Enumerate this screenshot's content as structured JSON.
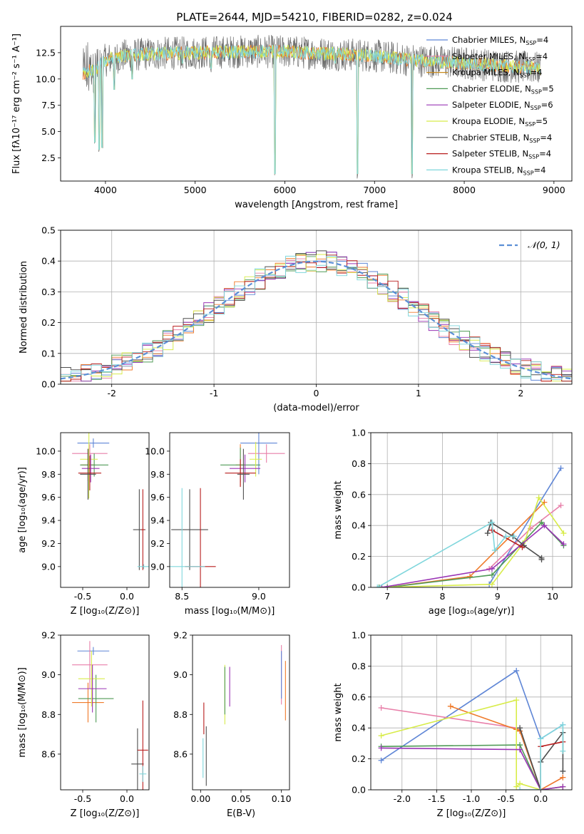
{
  "figure": {
    "title": "PLATE=2644, MJD=54210, FIBERID=0282, z=0.024"
  },
  "series_colors": {
    "Chabrier MILES": "#5f86d6",
    "Salpeter MILES": "#e87fa9",
    "Kroupa MILES": "#c98b1f",
    "Chabrier ELODIE": "#4f9a56",
    "Salpeter ELODIE": "#9a35b5",
    "Kroupa ELODIE": "#d8ec4a",
    "Chabrier STELIB": "#4f4f4f",
    "Salpeter STELIB": "#b81d1d",
    "Kroupa STELIB": "#7fd6dc",
    "Orange": "#ef7a2a"
  },
  "chart_data": [
    {
      "id": "spectrum",
      "type": "line",
      "title": "PLATE=2644, MJD=54210, FIBERID=0282, z=0.024",
      "xlabel": "wavelength [Angstrom, rest frame]",
      "ylabel": "Flux [fλ10⁻¹⁷ erg cm⁻² s⁻¹ A⁻¹]",
      "xlim": [
        3500,
        9200
      ],
      "ylim": [
        0.3,
        15.0
      ],
      "xticks": [
        4000,
        5000,
        6000,
        7000,
        8000,
        9000
      ],
      "yticks": [
        2.5,
        5.0,
        7.5,
        10.0,
        12.5
      ],
      "legend_loc": "upper-right",
      "legend": [
        "Chabrier MILES, N_SSP=4",
        "Salpeter MILES, N_SSP=4",
        "Kroupa MILES, N_SSP=4",
        "Chabrier ELODIE, N_SSP=5",
        "Salpeter ELODIE, N_SSP=6",
        "Kroupa ELODIE, N_SSP=5",
        "Chabrier STELIB, N_SSP=4",
        "Salpeter STELIB, N_SSP=4",
        "Kroupa STELIB, N_SSP=4"
      ],
      "data_range": [
        3750,
        8850
      ],
      "continuum_points": [
        [
          3750,
          10.5
        ],
        [
          3900,
          11.0
        ],
        [
          4000,
          11.8
        ],
        [
          4200,
          12.2
        ],
        [
          4500,
          12.4
        ],
        [
          5000,
          12.5
        ],
        [
          5500,
          12.6
        ],
        [
          6000,
          12.6
        ],
        [
          6500,
          12.4
        ],
        [
          7000,
          12.2
        ],
        [
          7400,
          11.8
        ],
        [
          8000,
          11.5
        ],
        [
          8500,
          11.2
        ],
        [
          8850,
          11.0
        ]
      ],
      "absorption_features": [
        [
          3880,
          3.5
        ],
        [
          3930,
          2.8
        ],
        [
          3965,
          3.0
        ],
        [
          4100,
          8.5
        ],
        [
          4300,
          9.5
        ],
        [
          4860,
          11.0
        ],
        [
          5175,
          10.5
        ],
        [
          5890,
          0.5
        ],
        [
          6560,
          11.0
        ],
        [
          6810,
          0.5
        ],
        [
          7420,
          0.5
        ]
      ]
    },
    {
      "id": "residuals",
      "type": "line",
      "xlabel": "(data-model)/error",
      "ylabel": "Normed distribution",
      "xlim": [
        -2.5,
        2.5
      ],
      "ylim": [
        0.0,
        0.5
      ],
      "xticks": [
        -2,
        -1,
        0,
        1,
        2
      ],
      "yticks": [
        0.0,
        0.1,
        0.2,
        0.3,
        0.4,
        0.5
      ],
      "grid": true,
      "legend_loc": "upper-right",
      "legend": [
        "𝒩(0, 1)"
      ],
      "histogram_bin_width": 0.1,
      "gaussian": {
        "mean": 0,
        "sigma": 1
      }
    },
    {
      "id": "age_vs_Z",
      "type": "scatter",
      "xlabel": "Z [log₁₀(Z/Z⊙)]",
      "ylabel": "age  [log₁₀(age/yr)]",
      "xlim": [
        -0.75,
        0.25
      ],
      "ylim": [
        8.82,
        10.16
      ],
      "xticks": [
        -0.5,
        0.0
      ],
      "yticks": [
        9.0,
        9.2,
        9.4,
        9.6,
        9.8,
        10.0
      ],
      "points": [
        {
          "series": "Chabrier MILES",
          "x": -0.38,
          "y": 10.07,
          "xerr": 0.18,
          "yerr": 0.04
        },
        {
          "series": "Salpeter MILES",
          "x": -0.42,
          "y": 9.98,
          "xerr": 0.2,
          "yerr": 0.08
        },
        {
          "series": "Orange",
          "x": -0.44,
          "y": 9.88,
          "xerr": 0.08,
          "yerr": 0.14
        },
        {
          "series": "Chabrier ELODIE",
          "x": -0.37,
          "y": 9.88,
          "xerr": 0.16,
          "yerr": 0.1
        },
        {
          "series": "Kroupa ELODIE",
          "x": -0.43,
          "y": 9.93,
          "xerr": 0.1,
          "yerr": 0.34
        },
        {
          "series": "Salpeter ELODIE",
          "x": -0.41,
          "y": 9.85,
          "xerr": 0.1,
          "yerr": 0.12
        },
        {
          "series": "Salpeter STELIB",
          "x": -0.42,
          "y": 9.81,
          "xerr": 0.13,
          "yerr": 0.15
        },
        {
          "series": "Chabrier STELIB",
          "x": -0.44,
          "y": 9.8,
          "xerr": 0.09,
          "yerr": 0.22
        },
        {
          "series": "Chabrier STELIB",
          "x": 0.14,
          "y": 9.32,
          "xerr": 0.07,
          "yerr": 0.35
        },
        {
          "series": "Salpeter STELIB",
          "x": 0.18,
          "y": 9.32,
          "xerr": 0.02,
          "yerr": 0.35
        },
        {
          "series": "Kroupa STELIB",
          "x": 0.19,
          "y": 9.0,
          "xerr": 0.07,
          "yerr": 0.02
        }
      ]
    },
    {
      "id": "age_vs_mass",
      "type": "scatter",
      "xlabel": "mass [log₁₀(M/M⊙)]",
      "ylabel": "",
      "xlim": [
        8.42,
        9.2
      ],
      "ylim": [
        8.82,
        10.16
      ],
      "xticks": [
        8.5,
        9.0
      ],
      "yticks": [
        9.0,
        9.2,
        9.4,
        9.6,
        9.8,
        10.0
      ],
      "points": [
        {
          "series": "Chabrier MILES",
          "x": 9.0,
          "y": 10.07,
          "xerr": 0.12,
          "yerr": 0.27
        },
        {
          "series": "Salpeter MILES",
          "x": 9.05,
          "y": 9.98,
          "xerr": 0.12,
          "yerr": 0.08
        },
        {
          "series": "Orange",
          "x": 8.88,
          "y": 9.88,
          "xerr": 0.03,
          "yerr": 0.18
        },
        {
          "series": "Chabrier ELODIE",
          "x": 8.88,
          "y": 9.88,
          "xerr": 0.13,
          "yerr": 0.15
        },
        {
          "series": "Kroupa ELODIE",
          "x": 8.98,
          "y": 9.93,
          "xerr": 0.04,
          "yerr": 0.15
        },
        {
          "series": "Salpeter ELODIE",
          "x": 8.91,
          "y": 9.85,
          "xerr": 0.1,
          "yerr": 0.12
        },
        {
          "series": "Salpeter STELIB",
          "x": 8.88,
          "y": 9.81,
          "xerr": 0.1,
          "yerr": 0.12
        },
        {
          "series": "Chabrier STELIB",
          "x": 8.9,
          "y": 9.8,
          "xerr": 0.04,
          "yerr": 0.22
        },
        {
          "series": "Chabrier STELIB",
          "x": 8.55,
          "y": 9.32,
          "xerr": 0.12,
          "yerr": 0.35
        },
        {
          "series": "Salpeter STELIB",
          "x": 8.62,
          "y": 9.0,
          "xerr": 0.1,
          "yerr": 0.68
        },
        {
          "series": "Kroupa STELIB",
          "x": 8.5,
          "y": 9.0,
          "xerr": 0.15,
          "yerr": 0.68
        }
      ]
    },
    {
      "id": "weight_vs_age",
      "type": "line",
      "xlabel": "age  [log₁₀(age/yr)]",
      "ylabel": "mass weight",
      "xlim": [
        6.7,
        10.35
      ],
      "ylim": [
        0.0,
        1.0
      ],
      "xticks": [
        7,
        8,
        9,
        10
      ],
      "yticks": [
        0.0,
        0.2,
        0.4,
        0.6,
        0.8,
        1.0
      ],
      "grid": true,
      "series": [
        {
          "series": "Chabrier MILES",
          "x": [
            8.85,
            10.15
          ],
          "y": [
            0.02,
            0.77
          ]
        },
        {
          "series": "Salpeter MILES",
          "x": [
            8.85,
            9.6,
            10.15
          ],
          "y": [
            0.12,
            0.38,
            0.53
          ]
        },
        {
          "series": "Orange",
          "x": [
            7.0,
            8.5,
            9.85
          ],
          "y": [
            0.0,
            0.07,
            0.55
          ]
        },
        {
          "series": "Chabrier ELODIE",
          "x": [
            6.85,
            7.0,
            8.9,
            9.8,
            10.2
          ],
          "y": [
            0.0,
            0.0,
            0.08,
            0.42,
            0.27
          ]
        },
        {
          "series": "Kroupa ELODIE",
          "x": [
            6.9,
            8.9,
            9.5,
            9.75,
            10.2
          ],
          "y": [
            0.0,
            0.02,
            0.3,
            0.58,
            0.35
          ]
        },
        {
          "series": "Salpeter ELODIE",
          "x": [
            6.9,
            8.9,
            9.85,
            10.2
          ],
          "y": [
            0.0,
            0.12,
            0.4,
            0.28
          ]
        },
        {
          "series": "Chabrier STELIB",
          "x": [
            8.82,
            8.88,
            9.28,
            9.48,
            9.8,
            9.8
          ],
          "y": [
            0.35,
            0.42,
            0.33,
            0.27,
            0.19,
            0.18
          ]
        },
        {
          "series": "Salpeter STELIB",
          "x": [
            8.9,
            9.45
          ],
          "y": [
            0.37,
            0.26
          ]
        },
        {
          "series": "Kroupa STELIB",
          "x": [
            6.82,
            8.9,
            8.95,
            9.15,
            9.3
          ],
          "y": [
            0.0,
            0.42,
            0.24,
            0.33,
            0.33
          ]
        }
      ]
    },
    {
      "id": "mass_vs_Z",
      "type": "scatter",
      "xlabel": "Z [log₁₀(Z/Z⊙)]",
      "ylabel": "mass [log₁₀(M/M⊙)]",
      "xlim": [
        -0.75,
        0.25
      ],
      "ylim": [
        8.42,
        9.2
      ],
      "xticks": [
        -0.5,
        0.0
      ],
      "yticks": [
        8.6,
        8.8,
        9.0,
        9.2
      ],
      "points": [
        {
          "series": "Chabrier MILES",
          "x": -0.38,
          "y": 9.12,
          "xerr": 0.18,
          "yerr": 0.02
        },
        {
          "series": "Salpeter MILES",
          "x": -0.42,
          "y": 9.05,
          "xerr": 0.2,
          "yerr": 0.12
        },
        {
          "series": "Orange",
          "x": -0.44,
          "y": 8.86,
          "xerr": 0.18,
          "yerr": 0.1
        },
        {
          "series": "Chabrier ELODIE",
          "x": -0.35,
          "y": 8.88,
          "xerr": 0.2,
          "yerr": 0.12
        },
        {
          "series": "Kroupa ELODIE",
          "x": -0.4,
          "y": 8.98,
          "xerr": 0.15,
          "yerr": 0.14
        },
        {
          "series": "Salpeter ELODIE",
          "x": -0.39,
          "y": 8.93,
          "xerr": 0.16,
          "yerr": 0.12
        },
        {
          "series": "Chabrier STELIB",
          "x": 0.12,
          "y": 8.55,
          "xerr": 0.07,
          "yerr": 0.18
        },
        {
          "series": "Salpeter STELIB",
          "x": 0.18,
          "y": 8.62,
          "xerr": 0.06,
          "yerr": 0.25
        },
        {
          "series": "Kroupa STELIB",
          "x": 0.18,
          "y": 8.5,
          "xerr": 0.04,
          "yerr": 0.04
        }
      ]
    },
    {
      "id": "mass_vs_ebv",
      "type": "scatter",
      "xlabel": "E(B-V)",
      "ylabel": "",
      "xlim": [
        -0.01,
        0.11
      ],
      "ylim": [
        8.42,
        9.2
      ],
      "xticks": [
        0.0,
        0.05,
        0.1
      ],
      "yticks": [
        8.6,
        8.8,
        9.0,
        9.2
      ],
      "points": [
        {
          "series": "Chabrier STELIB",
          "x": 0.007,
          "y": 8.59,
          "xerr": 0.0,
          "yerr": 0.15
        },
        {
          "series": "Kroupa STELIB",
          "x": 0.003,
          "y": 8.58,
          "xerr": 0.0,
          "yerr": 0.1
        },
        {
          "series": "Salpeter STELIB",
          "x": 0.004,
          "y": 8.78,
          "xerr": 0.0,
          "yerr": 0.08
        },
        {
          "series": "Kroupa ELODIE",
          "x": 0.03,
          "y": 8.9,
          "xerr": 0.0,
          "yerr": 0.15
        },
        {
          "series": "Chabrier ELODIE",
          "x": 0.03,
          "y": 8.92,
          "xerr": 0.0,
          "yerr": 0.12
        },
        {
          "series": "Salpeter ELODIE",
          "x": 0.036,
          "y": 8.94,
          "xerr": 0.0,
          "yerr": 0.1
        },
        {
          "series": "Salpeter MILES",
          "x": 0.1,
          "y": 9.0,
          "xerr": 0.0,
          "yerr": 0.15
        },
        {
          "series": "Chabrier MILES",
          "x": 0.1,
          "y": 9.0,
          "xerr": 0.0,
          "yerr": 0.12
        },
        {
          "series": "Orange",
          "x": 0.105,
          "y": 8.92,
          "xerr": 0.0,
          "yerr": 0.15
        }
      ]
    },
    {
      "id": "weight_vs_Z",
      "type": "line",
      "xlabel": "Z [log₁₀(Z/Z⊙)]",
      "ylabel": "mass weight",
      "xlim": [
        -2.45,
        0.45
      ],
      "ylim": [
        0.0,
        1.0
      ],
      "xticks": [
        -2.0,
        -1.5,
        -1.0,
        -0.5,
        0.0
      ],
      "yticks": [
        0.0,
        0.2,
        0.4,
        0.6,
        0.8,
        1.0
      ],
      "grid": true,
      "series": [
        {
          "series": "Chabrier MILES",
          "x": [
            -2.3,
            -0.35,
            0.0,
            0.32
          ],
          "y": [
            0.19,
            0.77,
            0.33,
            0.42
          ]
        },
        {
          "series": "Salpeter MILES",
          "x": [
            -2.3,
            -0.35,
            -0.3,
            0.0,
            0.32
          ],
          "y": [
            0.53,
            0.4,
            0.38,
            0.0,
            0.08
          ]
        },
        {
          "series": "Orange",
          "x": [
            -1.3,
            -0.35,
            -0.3,
            0.0,
            0.32
          ],
          "y": [
            0.54,
            0.39,
            0.38,
            0.0,
            0.08
          ]
        },
        {
          "series": "Chabrier ELODIE",
          "x": [
            -2.3,
            -0.3,
            0.0,
            0.32
          ],
          "y": [
            0.28,
            0.29,
            0.0,
            0.02
          ]
        },
        {
          "series": "Kroupa ELODIE",
          "x": [
            -2.3,
            -0.35,
            -0.35,
            -0.3,
            0.0,
            0.32
          ],
          "y": [
            0.35,
            0.58,
            0.02,
            0.04,
            0.0,
            0.02
          ]
        },
        {
          "series": "Salpeter ELODIE",
          "x": [
            -2.3,
            -0.3,
            0.0,
            0.32
          ],
          "y": [
            0.27,
            0.26,
            0.0,
            0.02
          ]
        },
        {
          "series": "Chabrier STELIB",
          "x": [
            -0.3,
            0.0,
            0.0,
            0.32,
            0.32
          ],
          "y": [
            0.4,
            0.0,
            0.18,
            0.37,
            0.12
          ]
        },
        {
          "series": "Salpeter STELIB",
          "x": [
            0.0,
            0.0,
            0.32
          ],
          "y": [
            0.0,
            0.28,
            0.31
          ]
        },
        {
          "series": "Kroupa STELIB",
          "x": [
            -0.3,
            0.0,
            0.0,
            0.32,
            0.32
          ],
          "y": [
            0.0,
            0.0,
            0.33,
            0.42,
            0.25
          ]
        }
      ]
    }
  ]
}
